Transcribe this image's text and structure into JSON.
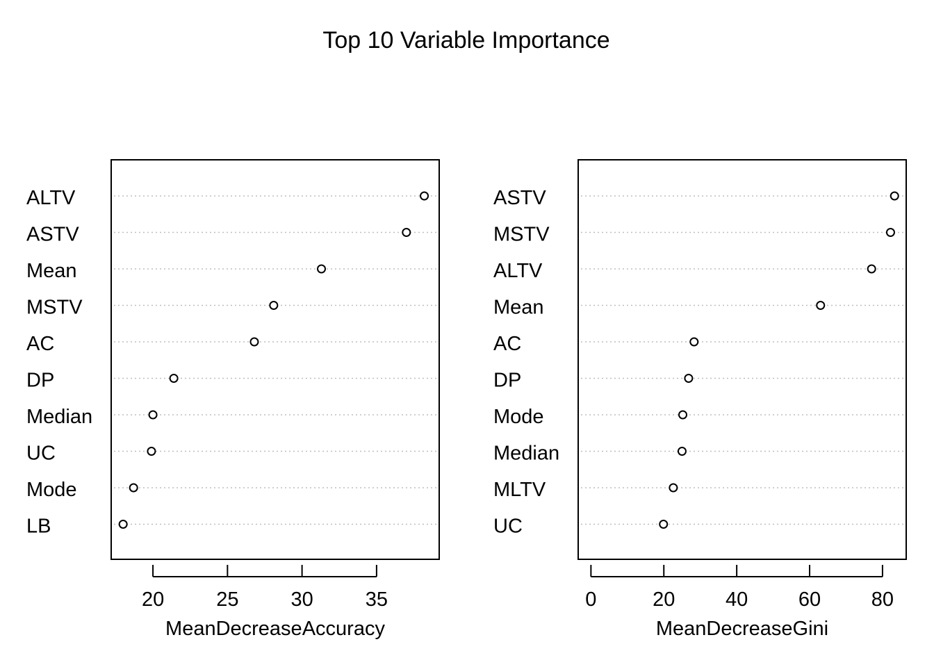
{
  "title": "Top 10 Variable Importance",
  "chart_data": [
    {
      "type": "scatter",
      "xlabel": "MeanDecreaseAccuracy",
      "ylabel": "",
      "xlim": [
        17.2,
        39.2
      ],
      "xticks": [
        20,
        25,
        30,
        35
      ],
      "grid": "dotted horizontal",
      "categories": [
        "ALTV",
        "ASTV",
        "Mean",
        "MSTV",
        "AC",
        "DP",
        "Median",
        "UC",
        "Mode",
        "LB"
      ],
      "values": [
        38.2,
        37.0,
        31.3,
        28.1,
        26.8,
        21.4,
        20.0,
        19.9,
        18.7,
        18.0
      ]
    },
    {
      "type": "scatter",
      "xlabel": "MeanDecreaseGini",
      "ylabel": "",
      "xlim": [
        -3.5,
        86.5
      ],
      "xticks": [
        0,
        20,
        40,
        60,
        80
      ],
      "grid": "dotted horizontal",
      "categories": [
        "ASTV",
        "MSTV",
        "ALTV",
        "Mean",
        "AC",
        "DP",
        "Mode",
        "Median",
        "MLTV",
        "UC"
      ],
      "values": [
        83.3,
        82.2,
        77.0,
        63.0,
        28.3,
        26.8,
        25.2,
        25.0,
        22.6,
        19.9
      ]
    }
  ]
}
